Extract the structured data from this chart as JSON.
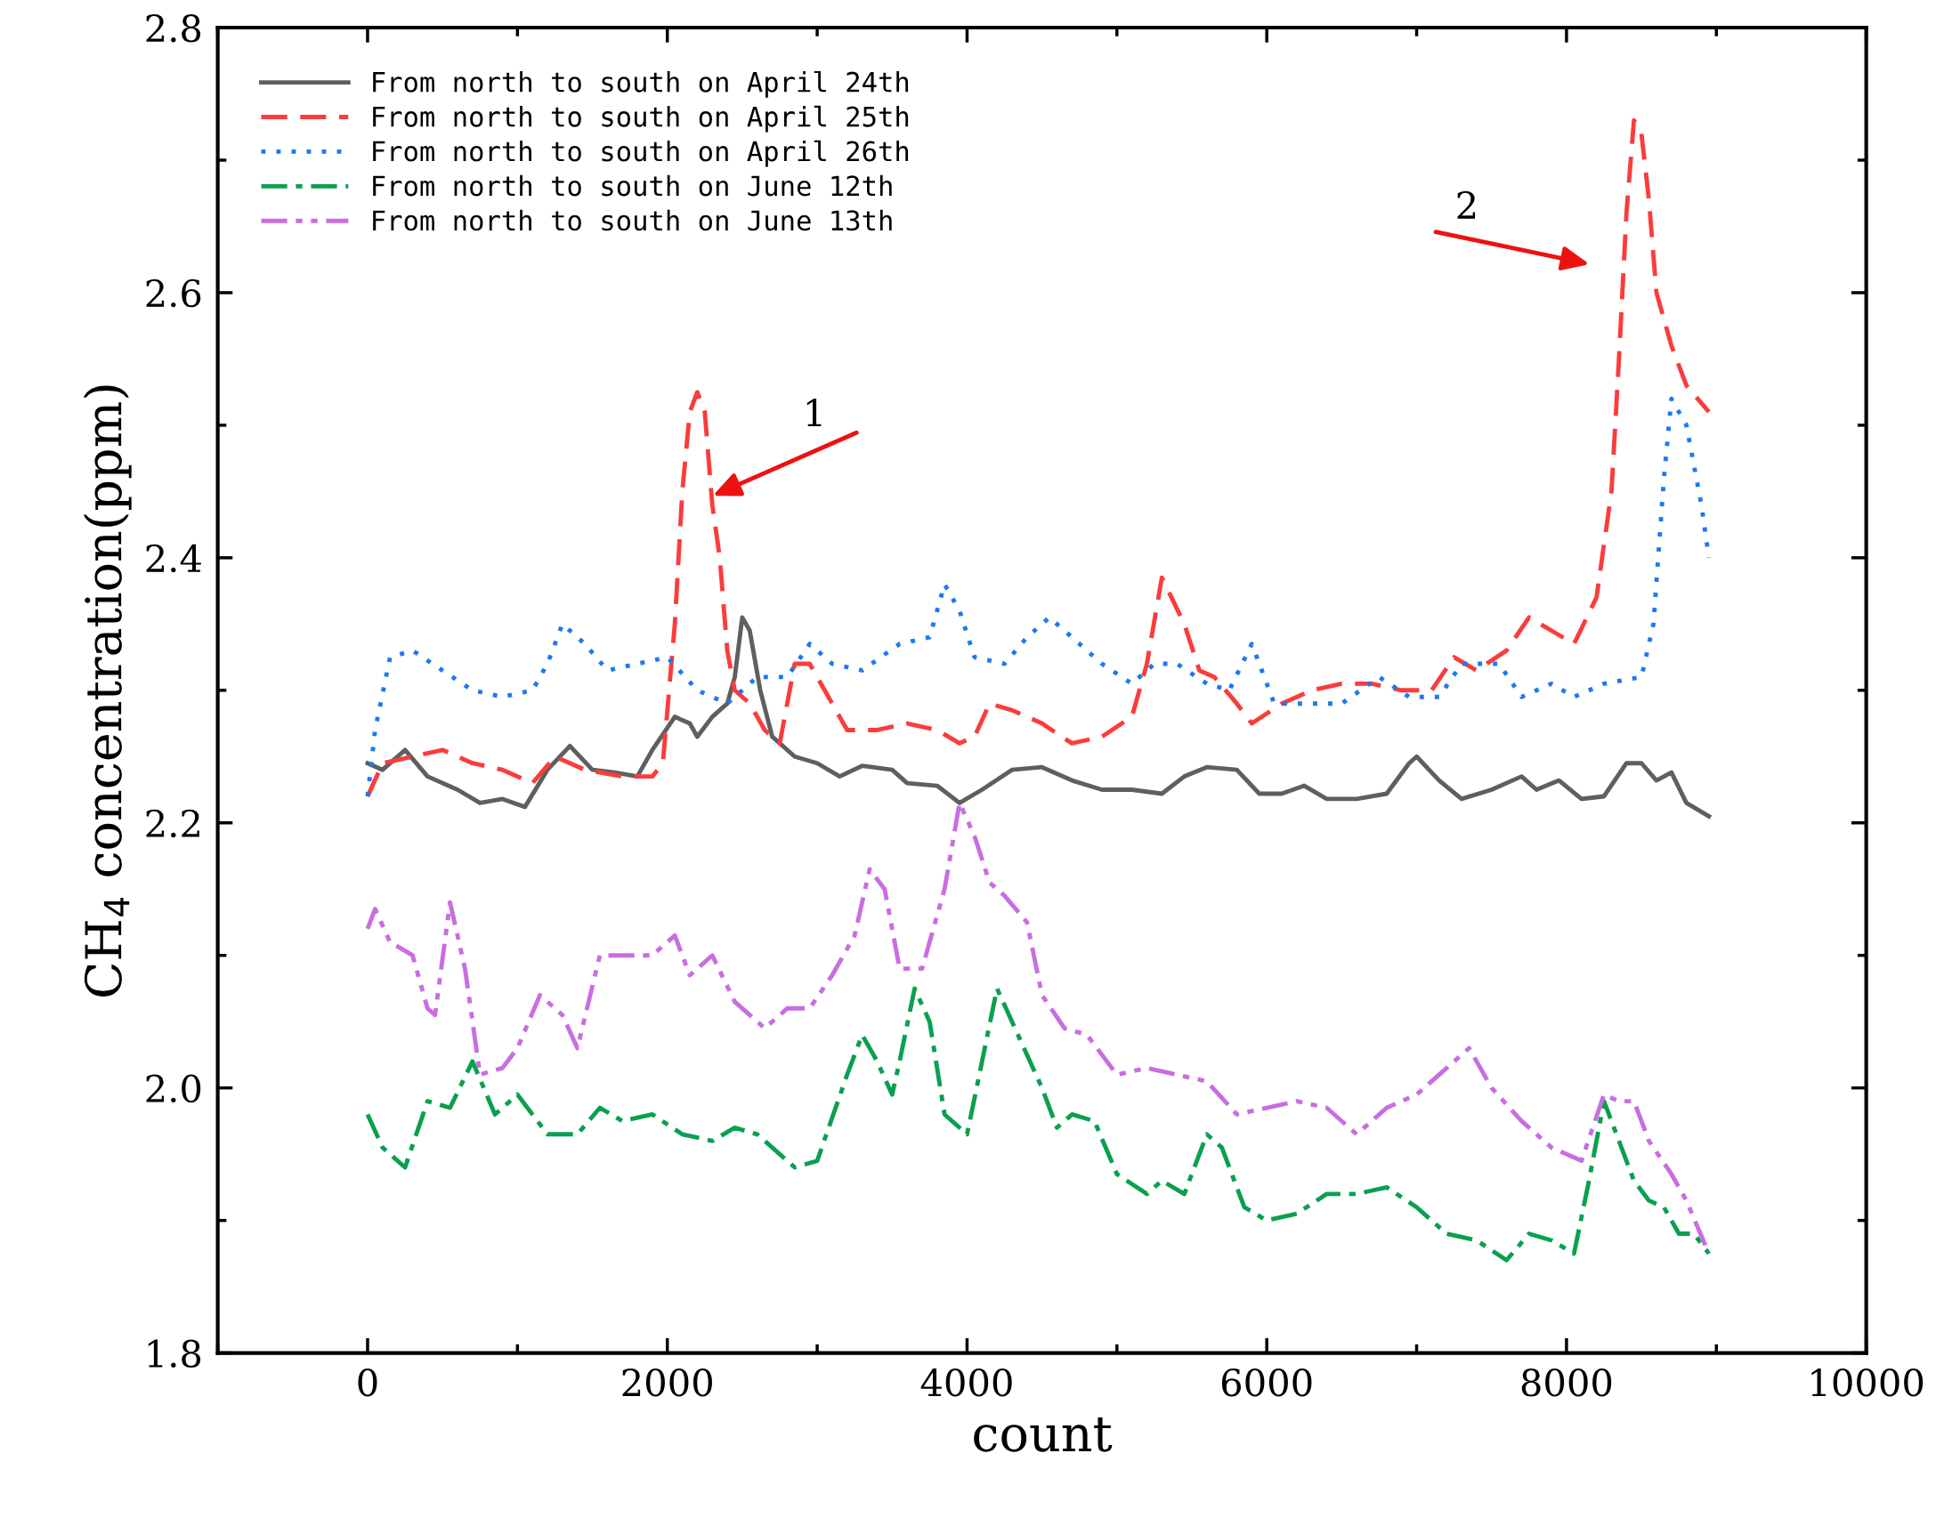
{
  "chart_data": {
    "type": "line",
    "xlabel": "count",
    "ylabel": "CH$_{4}$ concentration(ppm)",
    "xlim": [
      -1000,
      10000
    ],
    "xticks": [
      0,
      2000,
      4000,
      6000,
      8000,
      10000
    ],
    "ylim": [
      1.8,
      2.8
    ],
    "yticks": [
      {
        "value": 1.8,
        "label": "1.8"
      },
      {
        "value": 2.0,
        "label": "2.0"
      },
      {
        "value": 2.2,
        "label": "2.2"
      },
      {
        "value": 2.4,
        "label": "2.4"
      },
      {
        "value": 2.6,
        "label": "2.6"
      },
      {
        "value": 2.8,
        "label": "2.8"
      }
    ],
    "grid": false,
    "legend": "top left",
    "series": [
      {
        "name": "From north to south on April 24th",
        "color": "#5f5f5f",
        "line_style": "solid",
        "x": [
          0,
          100,
          250,
          400,
          600,
          750,
          900,
          1050,
          1200,
          1350,
          1500,
          1650,
          1800,
          1900,
          2050,
          2150,
          2200,
          2300,
          2400,
          2450,
          2500,
          2550,
          2620,
          2700,
          2850,
          3000,
          3150,
          3300,
          3500,
          3600,
          3800,
          3950,
          4100,
          4300,
          4500,
          4700,
          4900,
          5100,
          5300,
          5450,
          5600,
          5800,
          5950,
          6100,
          6250,
          6400,
          6600,
          6800,
          6950,
          7000,
          7150,
          7300,
          7500,
          7700,
          7800,
          7950,
          8100,
          8250,
          8400,
          8500,
          8600,
          8700,
          8800,
          8950
        ],
        "values": [
          2.245,
          2.24,
          2.255,
          2.235,
          2.225,
          2.215,
          2.218,
          2.212,
          2.24,
          2.258,
          2.24,
          2.238,
          2.235,
          2.255,
          2.28,
          2.275,
          2.265,
          2.28,
          2.29,
          2.31,
          2.355,
          2.345,
          2.3,
          2.265,
          2.25,
          2.245,
          2.235,
          2.243,
          2.24,
          2.23,
          2.228,
          2.215,
          2.225,
          2.24,
          2.242,
          2.232,
          2.225,
          2.225,
          2.222,
          2.235,
          2.242,
          2.24,
          2.222,
          2.222,
          2.228,
          2.218,
          2.218,
          2.222,
          2.245,
          2.25,
          2.232,
          2.218,
          2.225,
          2.235,
          2.225,
          2.232,
          2.218,
          2.22,
          2.245,
          2.245,
          2.232,
          2.238,
          2.215,
          2.205
        ]
      },
      {
        "name": "From north to south on April 25th",
        "color": "#fa3c3c",
        "line_style": "dashed",
        "x": [
          0,
          100,
          300,
          500,
          700,
          900,
          1100,
          1250,
          1450,
          1700,
          1900,
          1970,
          2050,
          2100,
          2150,
          2200,
          2250,
          2300,
          2350,
          2400,
          2450,
          2550,
          2650,
          2750,
          2850,
          2950,
          3050,
          3200,
          3400,
          3600,
          3800,
          3950,
          4050,
          4150,
          4300,
          4500,
          4700,
          4900,
          5100,
          5200,
          5300,
          5450,
          5550,
          5650,
          5800,
          5900,
          6100,
          6300,
          6500,
          6700,
          6900,
          7100,
          7250,
          7400,
          7600,
          7750,
          7900,
          8050,
          8200,
          8300,
          8350,
          8400,
          8450,
          8500,
          8550,
          8600,
          8700,
          8800,
          8950
        ],
        "values": [
          2.22,
          2.245,
          2.25,
          2.255,
          2.245,
          2.24,
          2.23,
          2.25,
          2.24,
          2.235,
          2.235,
          2.245,
          2.35,
          2.45,
          2.51,
          2.525,
          2.51,
          2.44,
          2.4,
          2.33,
          2.3,
          2.29,
          2.27,
          2.26,
          2.32,
          2.32,
          2.3,
          2.27,
          2.27,
          2.275,
          2.27,
          2.26,
          2.265,
          2.29,
          2.285,
          2.275,
          2.26,
          2.265,
          2.28,
          2.32,
          2.385,
          2.35,
          2.315,
          2.31,
          2.29,
          2.275,
          2.29,
          2.3,
          2.305,
          2.305,
          2.3,
          2.3,
          2.325,
          2.315,
          2.33,
          2.355,
          2.345,
          2.335,
          2.37,
          2.45,
          2.55,
          2.66,
          2.73,
          2.72,
          2.67,
          2.6,
          2.56,
          2.53,
          2.51
        ]
      },
      {
        "name": "From north to south on April 26th",
        "color": "#1e78f0",
        "line_style": "dotted",
        "x": [
          0,
          50,
          150,
          300,
          500,
          700,
          900,
          1100,
          1200,
          1300,
          1450,
          1600,
          1800,
          2000,
          2200,
          2400,
          2600,
          2800,
          2950,
          3100,
          3300,
          3550,
          3750,
          3850,
          3950,
          4050,
          4250,
          4400,
          4550,
          4700,
          4900,
          5100,
          5250,
          5400,
          5600,
          5750,
          5900,
          6050,
          6300,
          6500,
          6750,
          6950,
          7150,
          7300,
          7550,
          7700,
          7900,
          8050,
          8250,
          8500,
          8580,
          8650,
          8700,
          8800,
          8900,
          8950
        ],
        "values": [
          2.22,
          2.27,
          2.325,
          2.33,
          2.315,
          2.3,
          2.295,
          2.3,
          2.32,
          2.35,
          2.335,
          2.315,
          2.32,
          2.325,
          2.3,
          2.29,
          2.31,
          2.31,
          2.335,
          2.32,
          2.315,
          2.335,
          2.34,
          2.38,
          2.36,
          2.325,
          2.32,
          2.34,
          2.355,
          2.34,
          2.32,
          2.305,
          2.32,
          2.32,
          2.305,
          2.3,
          2.335,
          2.29,
          2.29,
          2.29,
          2.31,
          2.295,
          2.295,
          2.32,
          2.32,
          2.295,
          2.305,
          2.295,
          2.305,
          2.31,
          2.35,
          2.46,
          2.52,
          2.5,
          2.44,
          2.4
        ]
      },
      {
        "name": "From north to south on June 12th",
        "color": "#0aa050",
        "line_style": "dashdot",
        "x": [
          0,
          100,
          250,
          400,
          550,
          700,
          850,
          1000,
          1200,
          1400,
          1550,
          1700,
          1900,
          2100,
          2300,
          2450,
          2600,
          2850,
          3000,
          3200,
          3300,
          3400,
          3500,
          3550,
          3650,
          3750,
          3850,
          4000,
          4100,
          4200,
          4300,
          4500,
          4600,
          4700,
          4850,
          5000,
          5200,
          5300,
          5450,
          5600,
          5700,
          5850,
          6000,
          6200,
          6400,
          6600,
          6800,
          7000,
          7200,
          7400,
          7600,
          7750,
          7900,
          8050,
          8150,
          8250,
          8350,
          8450,
          8550,
          8650,
          8750,
          8850,
          8950
        ],
        "values": [
          1.98,
          1.955,
          1.94,
          1.99,
          1.985,
          2.02,
          1.98,
          1.995,
          1.965,
          1.965,
          1.985,
          1.975,
          1.98,
          1.965,
          1.96,
          1.97,
          1.965,
          1.94,
          1.945,
          2.01,
          2.04,
          2.02,
          1.995,
          2.02,
          2.075,
          2.05,
          1.98,
          1.965,
          2.02,
          2.075,
          2.05,
          2.0,
          1.97,
          1.98,
          1.975,
          1.935,
          1.92,
          1.93,
          1.92,
          1.965,
          1.955,
          1.91,
          1.9,
          1.905,
          1.92,
          1.92,
          1.925,
          1.91,
          1.89,
          1.885,
          1.87,
          1.89,
          1.885,
          1.875,
          1.93,
          1.99,
          1.96,
          1.93,
          1.915,
          1.91,
          1.89,
          1.89,
          1.875
        ]
      },
      {
        "name": "From north to south on June 13th",
        "color": "#c86ee0",
        "line_style": "dashdotdot",
        "x": [
          0,
          50,
          150,
          300,
          400,
          450,
          550,
          650,
          750,
          900,
          1000,
          1150,
          1300,
          1400,
          1550,
          1700,
          1900,
          2050,
          2150,
          2300,
          2450,
          2650,
          2800,
          2950,
          3100,
          3250,
          3350,
          3450,
          3550,
          3700,
          3850,
          3950,
          4050,
          4150,
          4250,
          4400,
          4500,
          4650,
          4800,
          5000,
          5200,
          5400,
          5600,
          5800,
          6000,
          6200,
          6400,
          6600,
          6800,
          7000,
          7200,
          7350,
          7500,
          7700,
          7900,
          8100,
          8250,
          8350,
          8450,
          8550,
          8700,
          8800,
          8950
        ],
        "values": [
          2.12,
          2.135,
          2.11,
          2.1,
          2.06,
          2.055,
          2.14,
          2.09,
          2.01,
          2.015,
          2.03,
          2.07,
          2.055,
          2.03,
          2.1,
          2.1,
          2.1,
          2.115,
          2.085,
          2.1,
          2.065,
          2.045,
          2.06,
          2.06,
          2.085,
          2.115,
          2.165,
          2.15,
          2.09,
          2.09,
          2.15,
          2.215,
          2.19,
          2.155,
          2.145,
          2.125,
          2.07,
          2.045,
          2.04,
          2.01,
          2.015,
          2.01,
          2.005,
          1.98,
          1.985,
          1.99,
          1.985,
          1.965,
          1.985,
          1.995,
          2.015,
          2.03,
          2.0,
          1.975,
          1.955,
          1.945,
          1.995,
          1.99,
          1.99,
          1.96,
          1.935,
          1.915,
          1.875
        ]
      }
    ],
    "annotations": [
      "1",
      "2"
    ]
  }
}
